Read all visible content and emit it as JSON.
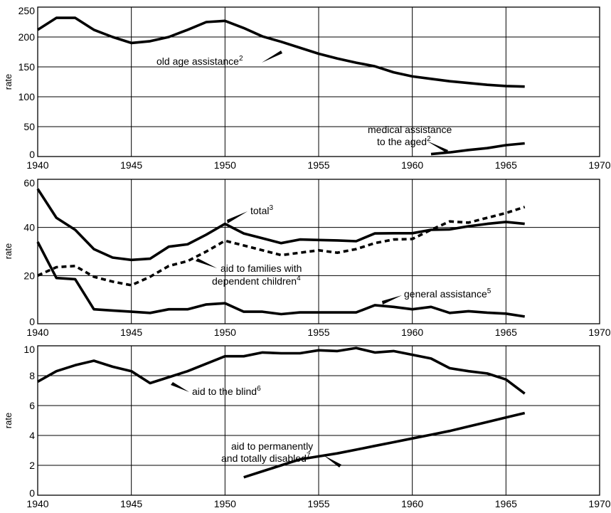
{
  "chart_data": [
    {
      "type": "line",
      "ylabel": "rate",
      "xlim": [
        1940,
        1970
      ],
      "ylim": [
        0,
        250
      ],
      "x_ticks": [
        "1940",
        "1945",
        "1950",
        "1955",
        "1960",
        "1965",
        "1970"
      ],
      "y_ticks": [
        "0",
        "50",
        "100",
        "150",
        "200",
        "250"
      ],
      "series": [
        {
          "name": "old age assistance",
          "sup": "2",
          "dashed": false,
          "x": [
            1940,
            1941,
            1942,
            1943,
            1944,
            1945,
            1946,
            1947,
            1948,
            1949,
            1950,
            1951,
            1952,
            1953,
            1954,
            1955,
            1956,
            1957,
            1958,
            1959,
            1960,
            1961,
            1962,
            1963,
            1964,
            1965,
            1966
          ],
          "y": [
            212,
            232,
            232,
            212,
            200,
            190,
            193,
            200,
            212,
            225,
            227,
            215,
            201,
            192,
            182,
            172,
            164,
            157,
            151,
            141,
            134,
            130,
            126,
            123,
            120,
            118,
            117
          ]
        },
        {
          "name": "medical assistance to the aged",
          "sup": "2",
          "dashed": false,
          "x": [
            1961,
            1962,
            1963,
            1964,
            1965,
            1966
          ],
          "y": [
            4,
            7,
            11,
            14,
            19,
            22
          ]
        }
      ],
      "annotations": [
        {
          "lines": [
            "old age assistance"
          ],
          "sup": "2"
        },
        {
          "lines": [
            "medical assistance",
            "to the aged"
          ],
          "sup": "2"
        }
      ]
    },
    {
      "type": "line",
      "ylabel": "rate",
      "xlim": [
        1940,
        1970
      ],
      "ylim": [
        0,
        60
      ],
      "x_ticks": [
        "1940",
        "1945",
        "1950",
        "1955",
        "1960",
        "1965",
        "1970"
      ],
      "y_ticks": [
        "0",
        "20",
        "40",
        "60"
      ],
      "series": [
        {
          "name": "total",
          "sup": "3",
          "dashed": false,
          "x": [
            1940,
            1941,
            1942,
            1943,
            1944,
            1945,
            1946,
            1947,
            1948,
            1949,
            1950,
            1951,
            1952,
            1953,
            1954,
            1955,
            1956,
            1957,
            1958,
            1959,
            1960,
            1961,
            1962,
            1963,
            1964,
            1965,
            1966
          ],
          "y": [
            56,
            44,
            39,
            31,
            27.5,
            26.5,
            27,
            32,
            33,
            37,
            41.5,
            37.5,
            35.5,
            33.5,
            35,
            34.8,
            34.6,
            34.3,
            37.5,
            37.6,
            37.6,
            39,
            39.2,
            40.5,
            41.5,
            42.3,
            41.5
          ]
        },
        {
          "name": "aid to families with dependent children",
          "sup": "4",
          "dashed": true,
          "x": [
            1940,
            1941,
            1942,
            1943,
            1944,
            1945,
            1946,
            1947,
            1948,
            1949,
            1950,
            1951,
            1952,
            1953,
            1954,
            1955,
            1956,
            1957,
            1958,
            1959,
            1960,
            1961,
            1962,
            1963,
            1964,
            1965,
            1966
          ],
          "y": [
            20,
            23.5,
            24,
            19.5,
            17.5,
            16,
            19.5,
            24,
            26,
            30,
            34.5,
            32.5,
            30.5,
            28.5,
            29.5,
            30.5,
            29.5,
            31,
            33.5,
            35,
            35.2,
            39,
            42.5,
            42,
            44,
            46,
            48.5
          ]
        },
        {
          "name": "general assistance",
          "sup": "5",
          "dashed": false,
          "x": [
            1940,
            1941,
            1942,
            1943,
            1944,
            1945,
            1946,
            1947,
            1948,
            1949,
            1950,
            1951,
            1952,
            1953,
            1954,
            1955,
            1956,
            1957,
            1958,
            1959,
            1960,
            1961,
            1962,
            1963,
            1964,
            1965,
            1966
          ],
          "y": [
            34,
            19,
            18.5,
            6,
            5.5,
            5,
            4.5,
            6,
            6,
            8,
            8.5,
            5,
            5,
            4,
            4.7,
            4.7,
            4.7,
            4.7,
            7.7,
            7,
            6,
            7,
            4.5,
            5.2,
            4.6,
            4.2,
            3
          ]
        }
      ],
      "annotations": [
        {
          "lines": [
            "total"
          ],
          "sup": "3"
        },
        {
          "lines": [
            "aid to families with",
            "dependent children"
          ],
          "sup": "4"
        },
        {
          "lines": [
            "general assistance"
          ],
          "sup": "5"
        }
      ]
    },
    {
      "type": "line",
      "ylabel": "rate",
      "xlim": [
        1940,
        1970
      ],
      "ylim": [
        0,
        10
      ],
      "x_ticks": [
        "1940",
        "1945",
        "1950",
        "1955",
        "1960",
        "1965",
        "1970"
      ],
      "y_ticks": [
        "0",
        "2",
        "4",
        "6",
        "8",
        "10"
      ],
      "series": [
        {
          "name": "aid to the blind",
          "sup": "6",
          "dashed": false,
          "x": [
            1940,
            1941,
            1942,
            1943,
            1944,
            1945,
            1946,
            1947,
            1948,
            1949,
            1950,
            1951,
            1952,
            1953,
            1954,
            1955,
            1956,
            1957,
            1958,
            1959,
            1960,
            1961,
            1962,
            1963,
            1964,
            1965,
            1966
          ],
          "y": [
            7.6,
            8.3,
            8.7,
            9.0,
            8.6,
            8.3,
            7.5,
            7.9,
            8.3,
            8.8,
            9.3,
            9.3,
            9.55,
            9.5,
            9.5,
            9.7,
            9.65,
            9.85,
            9.55,
            9.65,
            9.4,
            9.15,
            8.5,
            8.3,
            8.15,
            7.75,
            6.8
          ]
        },
        {
          "name": "aid to permanently and totally disabled",
          "sup": "7",
          "dashed": false,
          "x": [
            1951,
            1952,
            1953,
            1954,
            1955,
            1956,
            1957,
            1958,
            1959,
            1960,
            1961,
            1962,
            1963,
            1964,
            1965,
            1966
          ],
          "y": [
            1.2,
            1.6,
            2.0,
            2.4,
            2.6,
            2.8,
            3.05,
            3.3,
            3.55,
            3.8,
            4.05,
            4.3,
            4.6,
            4.9,
            5.2,
            5.5
          ]
        }
      ],
      "annotations": [
        {
          "lines": [
            "aid to the blind"
          ],
          "sup": "6"
        },
        {
          "lines": [
            "aid to permanently",
            "and totally disabled"
          ],
          "sup": "7"
        }
      ]
    }
  ]
}
